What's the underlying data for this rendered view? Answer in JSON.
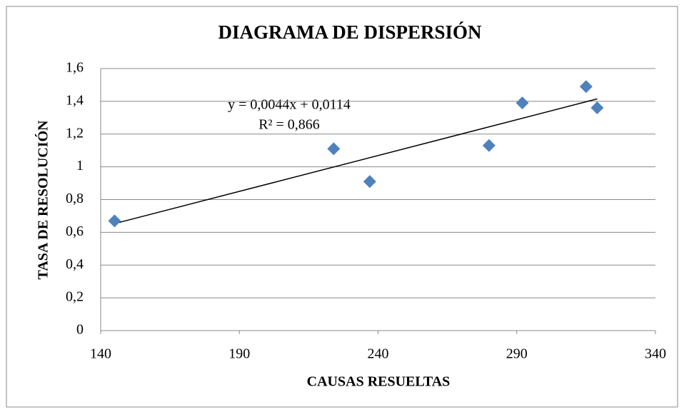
{
  "chart_data": {
    "type": "scatter",
    "title": "DIAGRAMA DE DISPERSIÓN",
    "x_label": "CAUSAS RESUELTAS",
    "y_label": "TASA DE RESOLUCIÓN",
    "x": [
      145,
      224,
      237,
      280,
      292,
      315,
      319
    ],
    "values": [
      0.67,
      1.11,
      0.91,
      1.13,
      1.39,
      1.49,
      1.36
    ],
    "color": "#4f81bd",
    "xlim": [
      140,
      340
    ],
    "xticks": [
      140,
      190,
      240,
      290,
      340
    ],
    "ylim": [
      0,
      1.6
    ],
    "yticks": [
      0,
      {
        "value": 0.2,
        "label": "0,2"
      },
      {
        "value": 0.4,
        "label": "0,4"
      },
      {
        "value": 0.6,
        "label": "0,6"
      },
      {
        "value": 0.8,
        "label": "0,8"
      },
      1,
      {
        "value": 1.2,
        "label": "1,2"
      },
      {
        "value": 1.4,
        "label": "1,4"
      },
      {
        "value": 1.6,
        "label": "1,6"
      }
    ],
    "grid": true,
    "trendline": {
      "equation": "y = 0,0044x + 0,0114",
      "r2": "R² = 0,866"
    }
  }
}
